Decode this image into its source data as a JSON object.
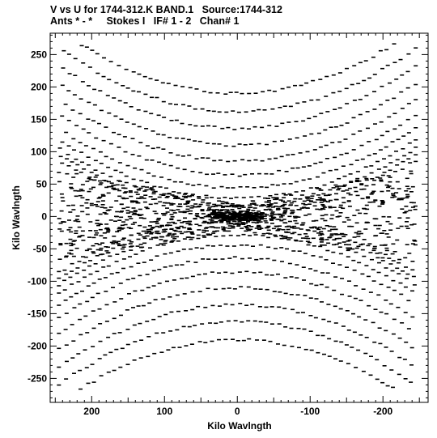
{
  "chart_data": {
    "type": "scatter",
    "title": "V vs U for 1744-312.K BAND.1   Source:1744-312",
    "subtitle": "Ants * - *     Stokes I   IF# 1 - 2   Chan# 1",
    "xlabel": "Kilo Wavlngth",
    "ylabel": "Kilo Wavlngth",
    "xlim": [
      257,
      -262
    ],
    "ylim": [
      -287,
      283
    ],
    "x_ticks": [
      200,
      100,
      0,
      -100,
      -200
    ],
    "y_ticks": [
      250,
      200,
      150,
      100,
      50,
      0,
      -50,
      -100,
      -150,
      -200,
      -250
    ],
    "grid": false,
    "legend": "none",
    "marker_color": "#000000",
    "point_style": "short horizontal dashes",
    "hyperbolic_tracks_k": [
      0,
      8,
      16,
      28,
      44,
      64,
      86,
      110,
      136,
      162,
      190
    ],
    "track_u_extent": [
      -245,
      245
    ],
    "inner_cloud_extent": {
      "u": [
        -245,
        245
      ],
      "v": [
        -70,
        70
      ]
    }
  }
}
